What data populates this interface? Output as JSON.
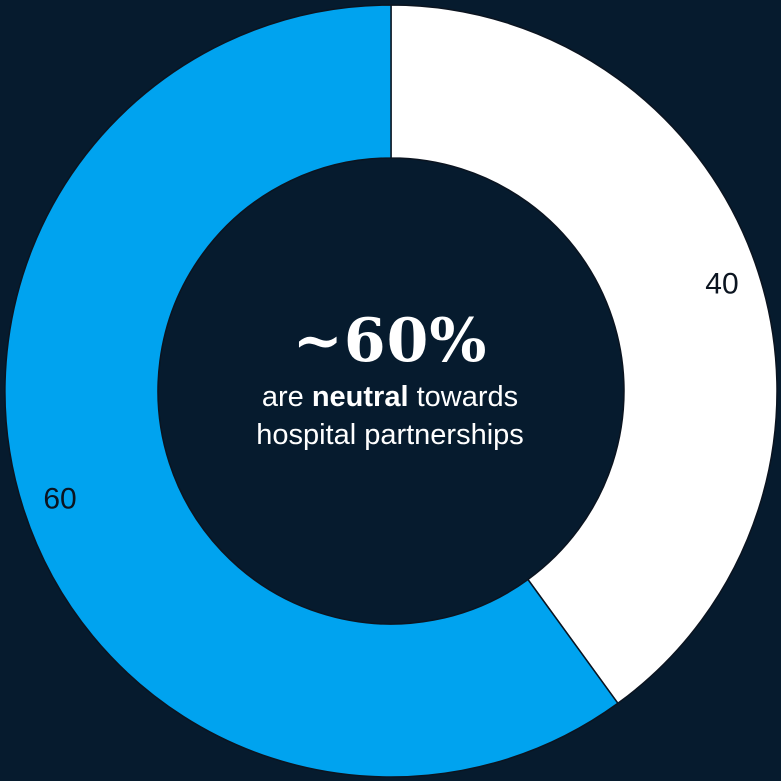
{
  "chart_data": {
    "type": "pie",
    "variant": "donut",
    "slices": [
      {
        "label": "40",
        "value": 40,
        "color": "#ffffff"
      },
      {
        "label": "60",
        "value": 60,
        "color": "#00a3ef"
      }
    ],
    "center": {
      "headline": "~60%",
      "line1_prefix": "are ",
      "line1_emphasis": "neutral",
      "line1_suffix": " towards",
      "line2": "hospital partnerships"
    }
  },
  "colors": {
    "background": "#061b2e",
    "divider": "#0b1420"
  }
}
